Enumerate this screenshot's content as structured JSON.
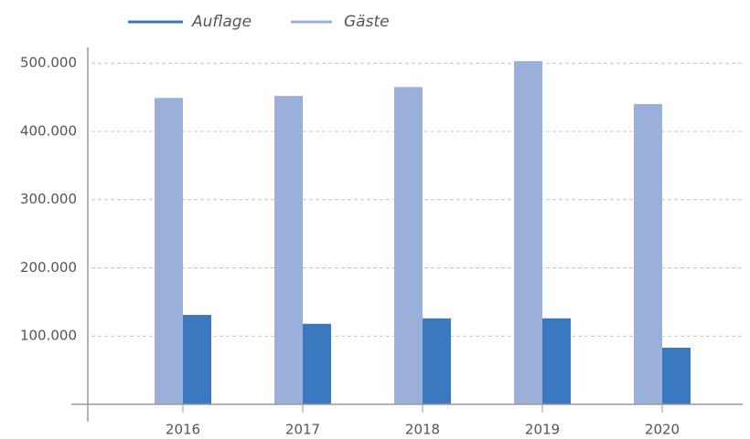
{
  "chart_data": {
    "type": "bar",
    "categories": [
      "2016",
      "2017",
      "2018",
      "2019",
      "2020"
    ],
    "series": [
      {
        "name": "Auflage",
        "color": "#3a78bf",
        "values": [
          131000,
          118000,
          126000,
          126000,
          83000
        ]
      },
      {
        "name": "Gäste",
        "color": "#9ab0db",
        "values": [
          449000,
          452000,
          465000,
          503000,
          440000
        ]
      }
    ],
    "ylim": [
      0,
      523000
    ],
    "yticks": [
      {
        "value": 100000,
        "label": "100.000"
      },
      {
        "value": 200000,
        "label": "200.000"
      },
      {
        "value": 300000,
        "label": "300.000"
      },
      {
        "value": 400000,
        "label": "400.000"
      },
      {
        "value": 500000,
        "label": "500.000"
      }
    ],
    "grid": true,
    "legend": "top"
  }
}
